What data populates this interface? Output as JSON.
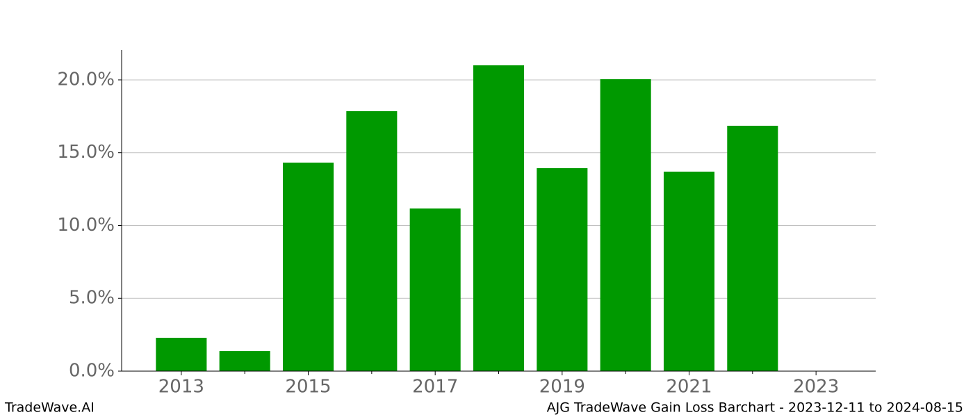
{
  "chart_data": {
    "type": "bar",
    "x": [
      2013,
      2014,
      2015,
      2016,
      2017,
      2018,
      2019,
      2020,
      2021,
      2022,
      2023
    ],
    "values": [
      2.29,
      1.38,
      14.32,
      17.85,
      11.17,
      21.0,
      13.94,
      20.05,
      13.7,
      16.85,
      0
    ],
    "color": "#009900",
    "xlim": [
      2012.06,
      2023.94
    ],
    "xticks": [
      2013,
      2015,
      2017,
      2019,
      2021,
      2023
    ],
    "x_minor_ticks": [
      2014,
      2016,
      2018,
      2020,
      2022
    ],
    "ylim": [
      0,
      22.05
    ],
    "yticks": [
      {
        "value": 0,
        "label": "0.0%"
      },
      {
        "value": 5,
        "label": "5.0%"
      },
      {
        "value": 10,
        "label": "10.0%"
      },
      {
        "value": 15,
        "label": "15.0%"
      },
      {
        "value": 20,
        "label": "20.0%"
      }
    ],
    "grid": true
  },
  "footer": {
    "left": "TradeWave.AI",
    "right": "AJG TradeWave Gain Loss Barchart - 2023-12-11 to 2024-08-15"
  }
}
